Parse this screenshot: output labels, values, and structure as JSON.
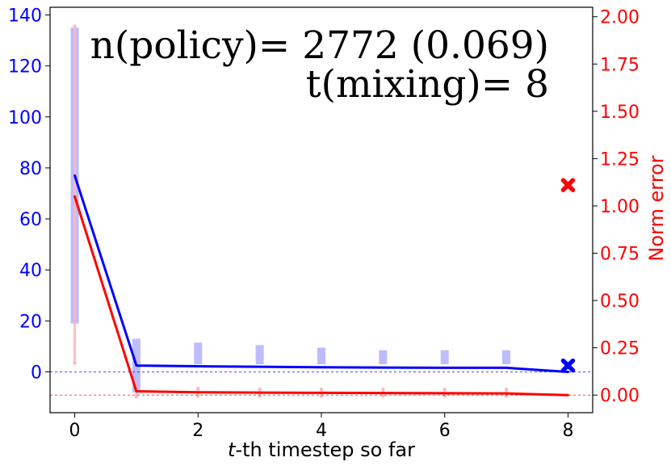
{
  "chart_data": {
    "type": "line",
    "annotations": [
      "n(policy)= 2772 (0.069)",
      "t(mixing)= 8"
    ],
    "xlabel": "t-th timestep so far",
    "xlabel_parts": {
      "italic": "t",
      "rest": "-th timestep so far"
    },
    "ylabel": "",
    "y2label": "Norm error",
    "xlim": [
      -0.4,
      8.4
    ],
    "ylim": [
      -16,
      143
    ],
    "y2lim": [
      -0.093,
      2.05
    ],
    "xticks": [
      0,
      2,
      4,
      6,
      8
    ],
    "yticks": [
      0,
      20,
      40,
      60,
      80,
      100,
      120,
      140
    ],
    "y2ticks": [
      0.0,
      0.25,
      0.5,
      0.75,
      1.0,
      1.25,
      1.5,
      1.75,
      2.0
    ],
    "y2tick_labels": [
      "0.00",
      "0.25",
      "0.50",
      "0.75",
      "1.00",
      "1.25",
      "1.50",
      "1.75",
      "2.00"
    ],
    "colors": {
      "blue": "#0000ff",
      "red": "#ff0000",
      "blue_band": "#b8b8ff",
      "red_band": "#ffb8b8"
    },
    "series": [
      {
        "axis": "left",
        "color": "#0000ff",
        "x": [
          0,
          1,
          2,
          3,
          4,
          5,
          6,
          7,
          8
        ],
        "values": [
          77,
          2.5,
          2.2,
          2.0,
          1.8,
          1.7,
          1.6,
          1.6,
          0
        ],
        "band_low": [
          19,
          -8,
          3,
          3,
          3,
          3,
          3,
          3,
          null
        ],
        "band_high": [
          135,
          13,
          11.5,
          10.5,
          9.5,
          8.5,
          8.5,
          8.5,
          null
        ],
        "final_marker": {
          "x": 8,
          "y": 2.5,
          "shape": "x"
        },
        "reference_line": 0
      },
      {
        "axis": "right",
        "color": "#ff0000",
        "x": [
          0,
          1,
          2,
          3,
          4,
          5,
          6,
          7,
          8
        ],
        "values": [
          1.05,
          0.02,
          0.015,
          0.013,
          0.012,
          0.011,
          0.01,
          0.009,
          0.0
        ],
        "band_low": [
          0.17,
          -0.01,
          -0.005,
          -0.005,
          -0.005,
          -0.005,
          -0.005,
          -0.005,
          null
        ],
        "band_high": [
          1.95,
          0.05,
          0.035,
          0.03,
          0.03,
          0.03,
          0.03,
          0.03,
          null
        ],
        "final_marker": {
          "x": 8,
          "y": 1.11,
          "shape": "x"
        },
        "reference_line": 0
      }
    ],
    "grid": false
  }
}
